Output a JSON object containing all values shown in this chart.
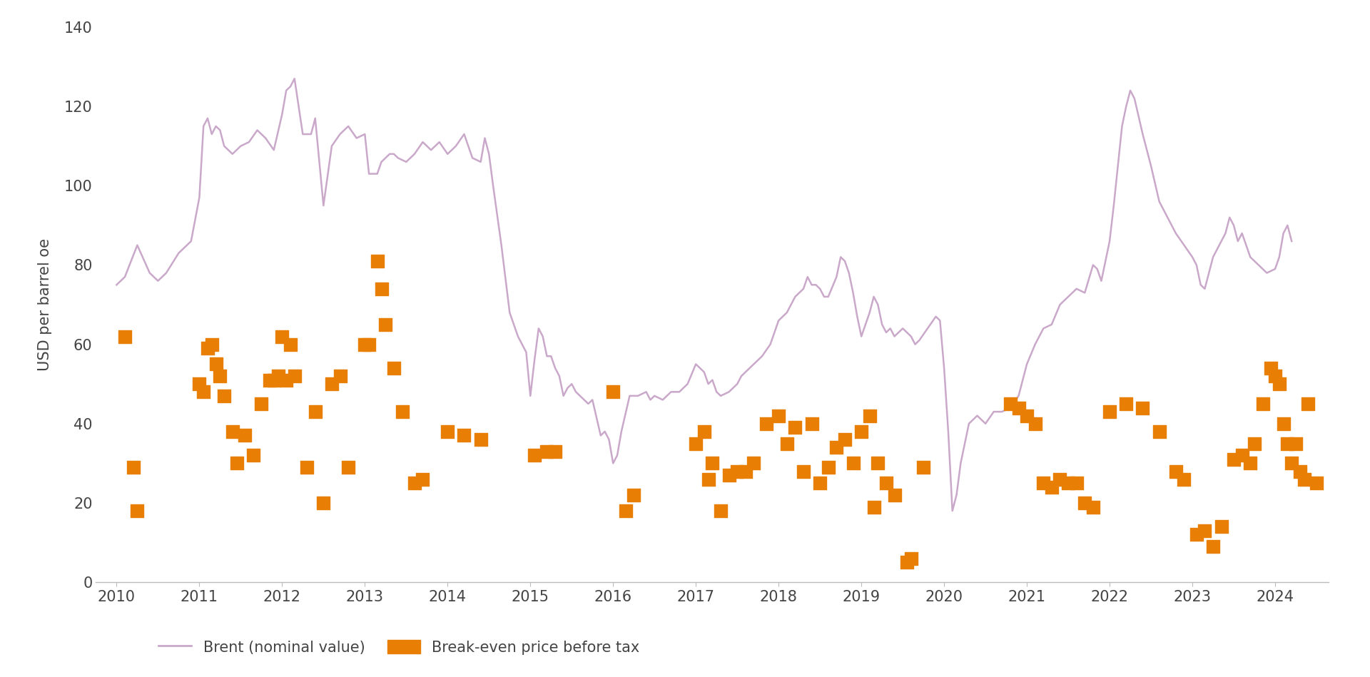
{
  "title": "",
  "ylabel": "USD per barrel oe",
  "ylim": [
    0,
    140
  ],
  "yticks": [
    0,
    20,
    40,
    60,
    80,
    100,
    120,
    140
  ],
  "background_color": "#ffffff",
  "brent_color": "#c9a8c9",
  "scatter_color": "#e87e04",
  "brent_line": [
    [
      2010.0,
      75
    ],
    [
      2010.1,
      77
    ],
    [
      2010.25,
      85
    ],
    [
      2010.4,
      78
    ],
    [
      2010.5,
      76
    ],
    [
      2010.6,
      78
    ],
    [
      2010.75,
      83
    ],
    [
      2010.9,
      86
    ],
    [
      2011.0,
      97
    ],
    [
      2011.05,
      115
    ],
    [
      2011.1,
      117
    ],
    [
      2011.15,
      113
    ],
    [
      2011.2,
      115
    ],
    [
      2011.25,
      114
    ],
    [
      2011.3,
      110
    ],
    [
      2011.4,
      108
    ],
    [
      2011.5,
      110
    ],
    [
      2011.6,
      111
    ],
    [
      2011.7,
      114
    ],
    [
      2011.8,
      112
    ],
    [
      2011.9,
      109
    ],
    [
      2012.0,
      118
    ],
    [
      2012.05,
      124
    ],
    [
      2012.1,
      125
    ],
    [
      2012.15,
      127
    ],
    [
      2012.25,
      113
    ],
    [
      2012.35,
      113
    ],
    [
      2012.4,
      117
    ],
    [
      2012.5,
      95
    ],
    [
      2012.6,
      110
    ],
    [
      2012.7,
      113
    ],
    [
      2012.8,
      115
    ],
    [
      2012.9,
      112
    ],
    [
      2013.0,
      113
    ],
    [
      2013.05,
      103
    ],
    [
      2013.1,
      103
    ],
    [
      2013.15,
      103
    ],
    [
      2013.2,
      106
    ],
    [
      2013.3,
      108
    ],
    [
      2013.35,
      108
    ],
    [
      2013.4,
      107
    ],
    [
      2013.5,
      106
    ],
    [
      2013.6,
      108
    ],
    [
      2013.7,
      111
    ],
    [
      2013.8,
      109
    ],
    [
      2013.9,
      111
    ],
    [
      2014.0,
      108
    ],
    [
      2014.1,
      110
    ],
    [
      2014.2,
      113
    ],
    [
      2014.3,
      107
    ],
    [
      2014.4,
      106
    ],
    [
      2014.45,
      112
    ],
    [
      2014.5,
      108
    ],
    [
      2014.55,
      100
    ],
    [
      2014.65,
      85
    ],
    [
      2014.75,
      68
    ],
    [
      2014.85,
      62
    ],
    [
      2014.95,
      58
    ],
    [
      2015.0,
      47
    ],
    [
      2015.05,
      56
    ],
    [
      2015.1,
      64
    ],
    [
      2015.15,
      62
    ],
    [
      2015.2,
      57
    ],
    [
      2015.25,
      57
    ],
    [
      2015.3,
      54
    ],
    [
      2015.35,
      52
    ],
    [
      2015.4,
      47
    ],
    [
      2015.45,
      49
    ],
    [
      2015.5,
      50
    ],
    [
      2015.55,
      48
    ],
    [
      2015.6,
      47
    ],
    [
      2015.7,
      45
    ],
    [
      2015.75,
      46
    ],
    [
      2015.85,
      37
    ],
    [
      2015.9,
      38
    ],
    [
      2015.95,
      36
    ],
    [
      2016.0,
      30
    ],
    [
      2016.05,
      32
    ],
    [
      2016.1,
      38
    ],
    [
      2016.2,
      47
    ],
    [
      2016.3,
      47
    ],
    [
      2016.4,
      48
    ],
    [
      2016.45,
      46
    ],
    [
      2016.5,
      47
    ],
    [
      2016.6,
      46
    ],
    [
      2016.7,
      48
    ],
    [
      2016.8,
      48
    ],
    [
      2016.9,
      50
    ],
    [
      2017.0,
      55
    ],
    [
      2017.1,
      53
    ],
    [
      2017.15,
      50
    ],
    [
      2017.2,
      51
    ],
    [
      2017.25,
      48
    ],
    [
      2017.3,
      47
    ],
    [
      2017.4,
      48
    ],
    [
      2017.5,
      50
    ],
    [
      2017.55,
      52
    ],
    [
      2017.6,
      53
    ],
    [
      2017.7,
      55
    ],
    [
      2017.8,
      57
    ],
    [
      2017.9,
      60
    ],
    [
      2018.0,
      66
    ],
    [
      2018.1,
      68
    ],
    [
      2018.15,
      70
    ],
    [
      2018.2,
      72
    ],
    [
      2018.3,
      74
    ],
    [
      2018.35,
      77
    ],
    [
      2018.4,
      75
    ],
    [
      2018.45,
      75
    ],
    [
      2018.5,
      74
    ],
    [
      2018.55,
      72
    ],
    [
      2018.6,
      72
    ],
    [
      2018.7,
      77
    ],
    [
      2018.75,
      82
    ],
    [
      2018.8,
      81
    ],
    [
      2018.85,
      78
    ],
    [
      2018.9,
      73
    ],
    [
      2018.95,
      67
    ],
    [
      2019.0,
      62
    ],
    [
      2019.05,
      65
    ],
    [
      2019.1,
      68
    ],
    [
      2019.15,
      72
    ],
    [
      2019.2,
      70
    ],
    [
      2019.25,
      65
    ],
    [
      2019.3,
      63
    ],
    [
      2019.35,
      64
    ],
    [
      2019.4,
      62
    ],
    [
      2019.45,
      63
    ],
    [
      2019.5,
      64
    ],
    [
      2019.6,
      62
    ],
    [
      2019.65,
      60
    ],
    [
      2019.7,
      61
    ],
    [
      2019.8,
      64
    ],
    [
      2019.9,
      67
    ],
    [
      2019.95,
      66
    ],
    [
      2020.0,
      54
    ],
    [
      2020.05,
      38
    ],
    [
      2020.1,
      18
    ],
    [
      2020.15,
      22
    ],
    [
      2020.2,
      30
    ],
    [
      2020.3,
      40
    ],
    [
      2020.4,
      42
    ],
    [
      2020.5,
      40
    ],
    [
      2020.6,
      43
    ],
    [
      2020.7,
      43
    ],
    [
      2020.8,
      44
    ],
    [
      2020.9,
      47
    ],
    [
      2021.0,
      55
    ],
    [
      2021.1,
      60
    ],
    [
      2021.2,
      64
    ],
    [
      2021.3,
      65
    ],
    [
      2021.4,
      70
    ],
    [
      2021.5,
      72
    ],
    [
      2021.6,
      74
    ],
    [
      2021.7,
      73
    ],
    [
      2021.8,
      80
    ],
    [
      2021.85,
      79
    ],
    [
      2021.9,
      76
    ],
    [
      2022.0,
      86
    ],
    [
      2022.05,
      95
    ],
    [
      2022.1,
      105
    ],
    [
      2022.15,
      115
    ],
    [
      2022.2,
      120
    ],
    [
      2022.25,
      124
    ],
    [
      2022.3,
      122
    ],
    [
      2022.4,
      113
    ],
    [
      2022.5,
      105
    ],
    [
      2022.6,
      96
    ],
    [
      2022.7,
      92
    ],
    [
      2022.8,
      88
    ],
    [
      2022.9,
      85
    ],
    [
      2023.0,
      82
    ],
    [
      2023.05,
      80
    ],
    [
      2023.1,
      75
    ],
    [
      2023.15,
      74
    ],
    [
      2023.2,
      78
    ],
    [
      2023.25,
      82
    ],
    [
      2023.3,
      84
    ],
    [
      2023.35,
      86
    ],
    [
      2023.4,
      88
    ],
    [
      2023.45,
      92
    ],
    [
      2023.5,
      90
    ],
    [
      2023.55,
      86
    ],
    [
      2023.6,
      88
    ],
    [
      2023.7,
      82
    ],
    [
      2023.75,
      81
    ],
    [
      2023.8,
      80
    ],
    [
      2023.85,
      79
    ],
    [
      2023.9,
      78
    ],
    [
      2024.0,
      79
    ],
    [
      2024.05,
      82
    ],
    [
      2024.1,
      88
    ],
    [
      2024.15,
      90
    ],
    [
      2024.2,
      86
    ]
  ],
  "scatter_points": [
    [
      2010.1,
      62
    ],
    [
      2010.2,
      29
    ],
    [
      2010.25,
      18
    ],
    [
      2011.0,
      50
    ],
    [
      2011.05,
      48
    ],
    [
      2011.1,
      59
    ],
    [
      2011.15,
      60
    ],
    [
      2011.2,
      55
    ],
    [
      2011.25,
      52
    ],
    [
      2011.3,
      47
    ],
    [
      2011.4,
      38
    ],
    [
      2011.45,
      30
    ],
    [
      2011.55,
      37
    ],
    [
      2011.65,
      32
    ],
    [
      2011.75,
      45
    ],
    [
      2011.85,
      51
    ],
    [
      2011.9,
      51
    ],
    [
      2011.95,
      52
    ],
    [
      2012.0,
      62
    ],
    [
      2012.05,
      51
    ],
    [
      2012.1,
      60
    ],
    [
      2012.15,
      52
    ],
    [
      2012.3,
      29
    ],
    [
      2012.4,
      43
    ],
    [
      2012.5,
      20
    ],
    [
      2012.6,
      50
    ],
    [
      2012.7,
      52
    ],
    [
      2012.8,
      29
    ],
    [
      2013.0,
      60
    ],
    [
      2013.05,
      60
    ],
    [
      2013.15,
      81
    ],
    [
      2013.2,
      74
    ],
    [
      2013.25,
      65
    ],
    [
      2013.35,
      54
    ],
    [
      2013.45,
      43
    ],
    [
      2013.6,
      25
    ],
    [
      2013.7,
      26
    ],
    [
      2014.0,
      38
    ],
    [
      2014.2,
      37
    ],
    [
      2014.4,
      36
    ],
    [
      2015.05,
      32
    ],
    [
      2015.2,
      33
    ],
    [
      2015.3,
      33
    ],
    [
      2016.0,
      48
    ],
    [
      2016.15,
      18
    ],
    [
      2016.25,
      22
    ],
    [
      2017.0,
      35
    ],
    [
      2017.1,
      38
    ],
    [
      2017.15,
      26
    ],
    [
      2017.2,
      30
    ],
    [
      2017.3,
      18
    ],
    [
      2017.4,
      27
    ],
    [
      2017.5,
      28
    ],
    [
      2017.6,
      28
    ],
    [
      2017.7,
      30
    ],
    [
      2017.85,
      40
    ],
    [
      2018.0,
      42
    ],
    [
      2018.1,
      35
    ],
    [
      2018.2,
      39
    ],
    [
      2018.3,
      28
    ],
    [
      2018.4,
      40
    ],
    [
      2018.5,
      25
    ],
    [
      2018.6,
      29
    ],
    [
      2018.7,
      34
    ],
    [
      2018.8,
      36
    ],
    [
      2018.9,
      30
    ],
    [
      2019.0,
      38
    ],
    [
      2019.1,
      42
    ],
    [
      2019.15,
      19
    ],
    [
      2019.2,
      30
    ],
    [
      2019.3,
      25
    ],
    [
      2019.4,
      22
    ],
    [
      2019.55,
      5
    ],
    [
      2019.6,
      6
    ],
    [
      2019.75,
      29
    ],
    [
      2020.8,
      45
    ],
    [
      2020.9,
      44
    ],
    [
      2021.0,
      42
    ],
    [
      2021.1,
      40
    ],
    [
      2021.2,
      25
    ],
    [
      2021.3,
      24
    ],
    [
      2021.4,
      26
    ],
    [
      2021.5,
      25
    ],
    [
      2021.6,
      25
    ],
    [
      2021.7,
      20
    ],
    [
      2021.8,
      19
    ],
    [
      2022.0,
      43
    ],
    [
      2022.2,
      45
    ],
    [
      2022.4,
      44
    ],
    [
      2022.6,
      38
    ],
    [
      2022.8,
      28
    ],
    [
      2022.9,
      26
    ],
    [
      2023.05,
      12
    ],
    [
      2023.15,
      13
    ],
    [
      2023.25,
      9
    ],
    [
      2023.35,
      14
    ],
    [
      2023.5,
      31
    ],
    [
      2023.6,
      32
    ],
    [
      2023.7,
      30
    ],
    [
      2023.75,
      35
    ],
    [
      2023.85,
      45
    ],
    [
      2023.95,
      54
    ],
    [
      2024.0,
      52
    ],
    [
      2024.05,
      50
    ],
    [
      2024.1,
      40
    ],
    [
      2024.15,
      35
    ],
    [
      2024.2,
      30
    ],
    [
      2024.25,
      35
    ],
    [
      2024.3,
      28
    ],
    [
      2024.35,
      26
    ],
    [
      2024.4,
      45
    ],
    [
      2024.5,
      25
    ]
  ],
  "legend_brent_label": "Brent (nominal value)",
  "legend_scatter_label": "Break-even price before tax",
  "xlim": [
    2009.75,
    2024.65
  ],
  "xticks": [
    2010,
    2011,
    2012,
    2013,
    2014,
    2015,
    2016,
    2017,
    2018,
    2019,
    2020,
    2021,
    2022,
    2023,
    2024
  ]
}
